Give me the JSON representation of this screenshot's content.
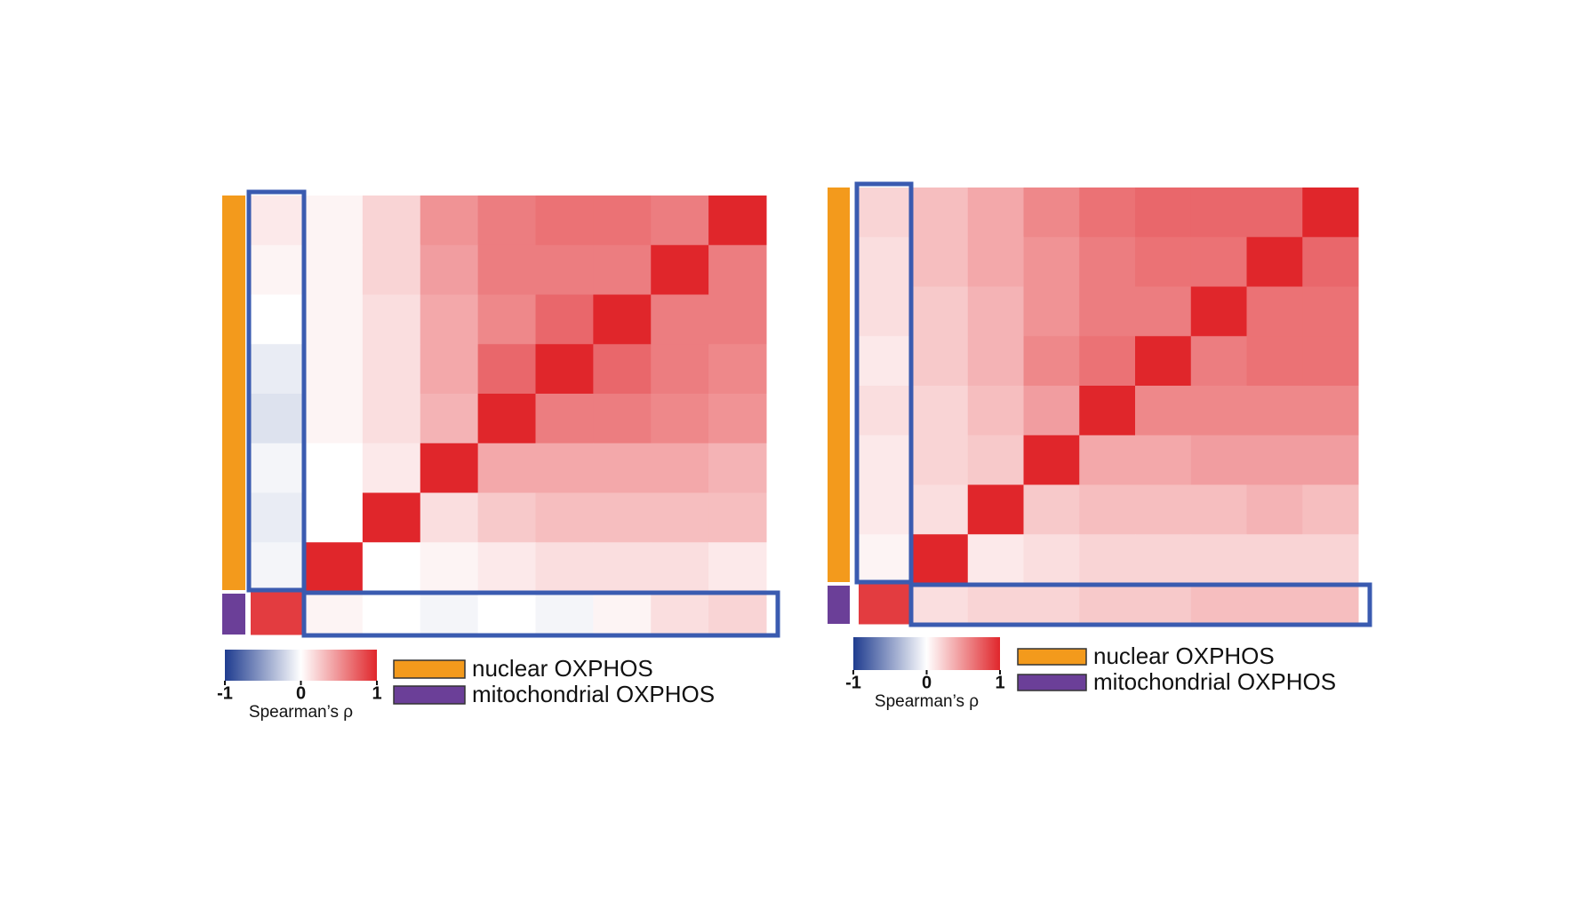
{
  "chart_data": [
    {
      "type": "heatmap",
      "groups": [
        {
          "name": "nuclear OXPHOS",
          "color": "#f39a1c",
          "size": 8
        },
        {
          "name": "mitochondrial OXPHOS",
          "color": "#6b3f98",
          "size": 1
        }
      ],
      "z": [
        [
          0.1,
          0.05,
          0.2,
          0.5,
          0.6,
          0.65,
          0.65,
          0.6,
          1
        ],
        [
          0.05,
          0.05,
          0.2,
          0.45,
          0.6,
          0.6,
          0.6,
          1,
          0.6
        ],
        [
          0,
          0.05,
          0.15,
          0.4,
          0.55,
          0.7,
          1,
          0.6,
          0.6
        ],
        [
          -0.1,
          0.05,
          0.15,
          0.4,
          0.7,
          1,
          0.7,
          0.6,
          0.55
        ],
        [
          -0.15,
          0.05,
          0.15,
          0.35,
          1,
          0.6,
          0.6,
          0.55,
          0.5
        ],
        [
          -0.05,
          0,
          0.1,
          1,
          0.4,
          0.4,
          0.4,
          0.4,
          0.35
        ],
        [
          -0.1,
          0,
          1,
          0.15,
          0.25,
          0.3,
          0.3,
          0.3,
          0.3
        ],
        [
          -0.05,
          1,
          0,
          0.05,
          0.1,
          0.15,
          0.15,
          0.15,
          0.1
        ],
        [
          0.9,
          0.05,
          0,
          -0.05,
          0,
          -0.05,
          0.05,
          0.15,
          0.2
        ]
      ],
      "colormap": [
        "#1f3c8f",
        "#ffffff",
        "#e0262b"
      ],
      "zlim": [
        -1,
        1
      ],
      "colorbar_ticks": [
        -1,
        0,
        1
      ],
      "colorbar_label": "Spearman’s ρ"
    },
    {
      "type": "heatmap",
      "groups": [
        {
          "name": "nuclear OXPHOS",
          "color": "#f39a1c",
          "size": 8
        },
        {
          "name": "mitochondrial OXPHOS",
          "color": "#6b3f98",
          "size": 1
        }
      ],
      "z": [
        [
          0.2,
          0.3,
          0.4,
          0.55,
          0.65,
          0.7,
          0.7,
          0.7,
          1
        ],
        [
          0.15,
          0.3,
          0.4,
          0.5,
          0.6,
          0.65,
          0.65,
          1,
          0.7
        ],
        [
          0.15,
          0.25,
          0.35,
          0.5,
          0.6,
          0.6,
          1,
          0.65,
          0.65
        ],
        [
          0.1,
          0.25,
          0.35,
          0.55,
          0.65,
          1,
          0.6,
          0.65,
          0.65
        ],
        [
          0.15,
          0.2,
          0.3,
          0.45,
          1,
          0.55,
          0.55,
          0.55,
          0.55
        ],
        [
          0.1,
          0.2,
          0.25,
          1,
          0.4,
          0.4,
          0.45,
          0.45,
          0.45
        ],
        [
          0.1,
          0.15,
          1,
          0.25,
          0.3,
          0.3,
          0.3,
          0.35,
          0.3
        ],
        [
          0.05,
          1,
          0.1,
          0.15,
          0.2,
          0.2,
          0.2,
          0.2,
          0.2
        ],
        [
          0.9,
          0.15,
          0.2,
          0.2,
          0.25,
          0.25,
          0.3,
          0.3,
          0.3
        ]
      ],
      "colormap": [
        "#1f3c8f",
        "#ffffff",
        "#e0262b"
      ],
      "zlim": [
        -1,
        1
      ],
      "colorbar_ticks": [
        -1,
        0,
        1
      ],
      "colorbar_label": "Spearman’s ρ"
    }
  ]
}
